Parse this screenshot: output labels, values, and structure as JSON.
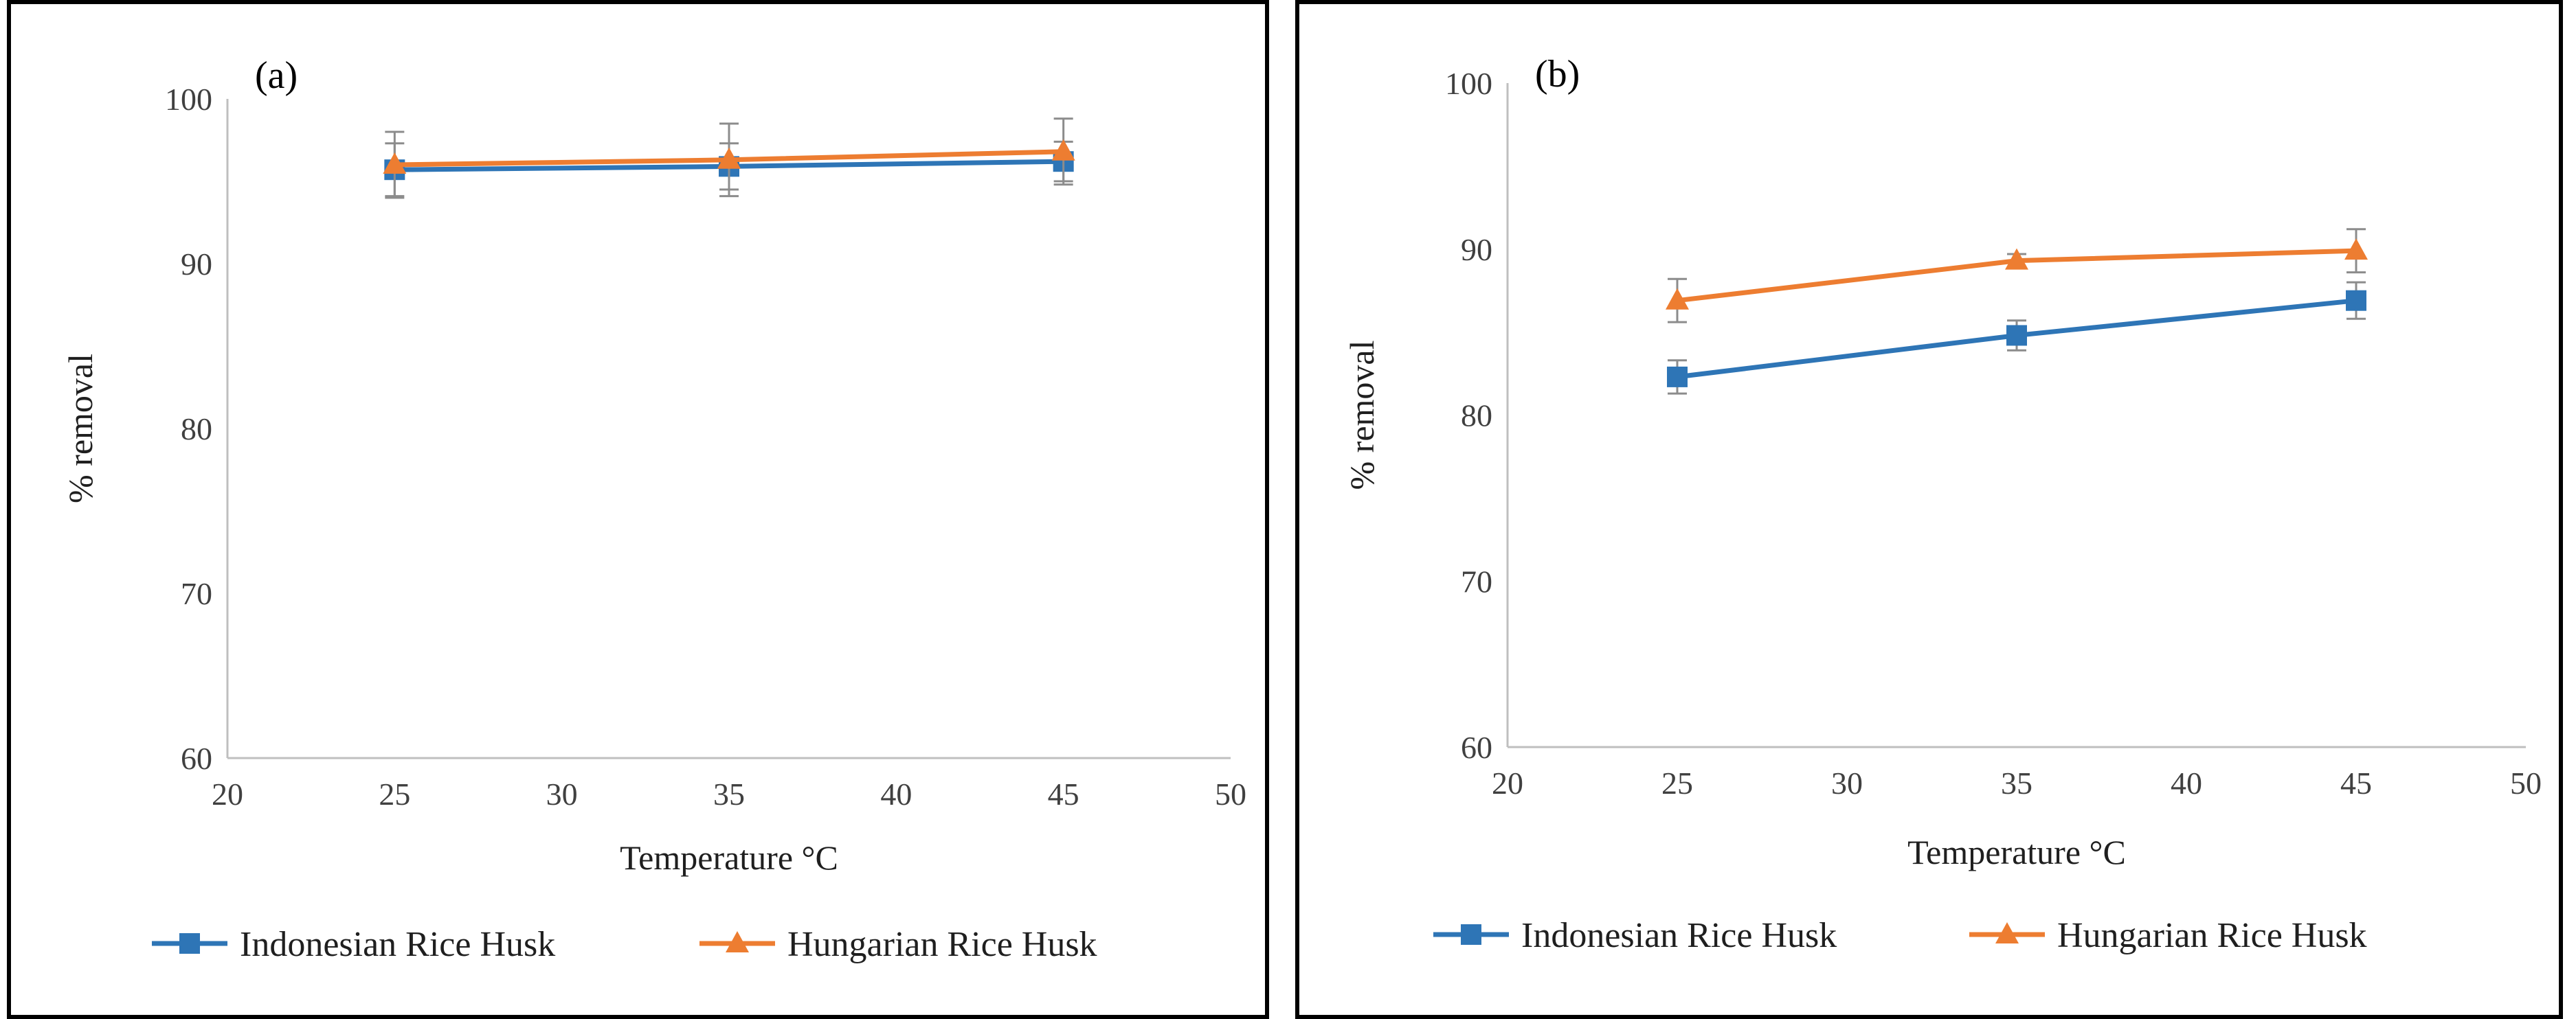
{
  "chart_data": [
    {
      "type": "line",
      "panel_label": "(a)",
      "title": "",
      "xlabel": "Temperature °C",
      "ylabel": "% removal",
      "xlim": [
        20,
        50
      ],
      "ylim": [
        60,
        100
      ],
      "xticks": [
        20,
        25,
        30,
        35,
        40,
        45,
        50
      ],
      "yticks": [
        60,
        70,
        80,
        90,
        100
      ],
      "grid": false,
      "legend_position": "bottom",
      "x": [
        25,
        35,
        45
      ],
      "series": [
        {
          "name": "Indonesian Rice Husk",
          "values": [
            95.7,
            95.9,
            96.2
          ],
          "error": [
            1.6,
            1.4,
            1.2
          ],
          "color": "#2E75B6",
          "marker": "square"
        },
        {
          "name": "Hungarian Rice Husk",
          "values": [
            96.0,
            96.3,
            96.8
          ],
          "error": [
            2.0,
            2.2,
            2.0
          ],
          "color": "#ED7D31",
          "marker": "triangle"
        }
      ]
    },
    {
      "type": "line",
      "panel_label": "(b)",
      "title": "",
      "xlabel": "Temperature °C",
      "ylabel": "% removal",
      "xlim": [
        20,
        50
      ],
      "ylim": [
        60,
        100
      ],
      "xticks": [
        20,
        25,
        30,
        35,
        40,
        45,
        50
      ],
      "yticks": [
        60,
        70,
        80,
        90,
        100
      ],
      "grid": false,
      "legend_position": "bottom",
      "x": [
        25,
        35,
        45
      ],
      "series": [
        {
          "name": "Indonesian Rice Husk",
          "values": [
            82.3,
            84.8,
            86.9
          ],
          "error": [
            1.0,
            0.9,
            1.1
          ],
          "color": "#2E75B6",
          "marker": "square"
        },
        {
          "name": "Hungarian Rice Husk",
          "values": [
            86.9,
            89.3,
            89.9
          ],
          "error": [
            1.3,
            0.4,
            1.3
          ],
          "color": "#ED7D31",
          "marker": "triangle"
        }
      ]
    }
  ]
}
